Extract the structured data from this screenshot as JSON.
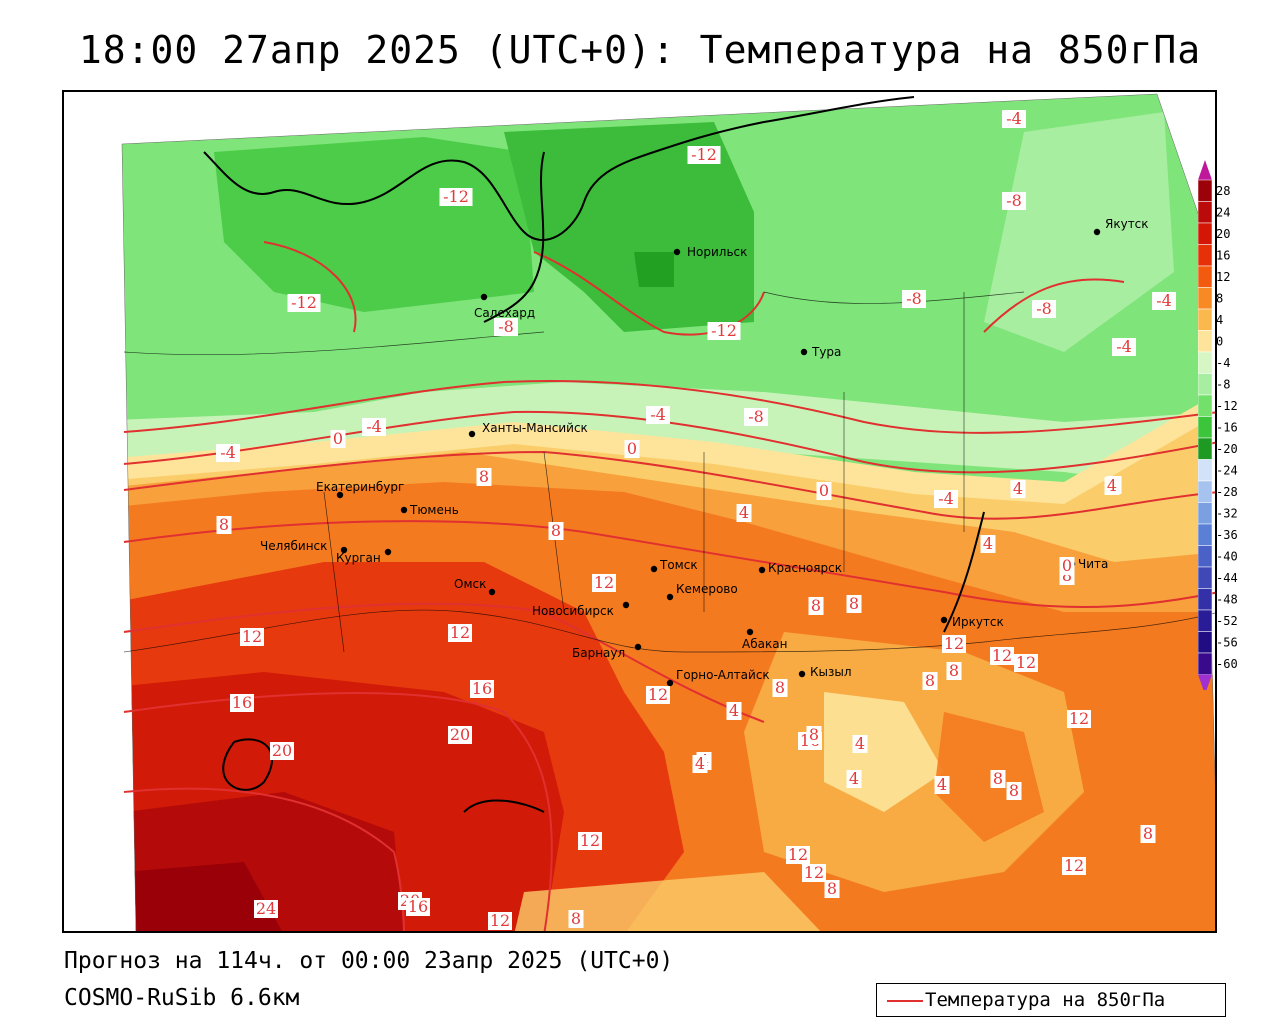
{
  "header": {
    "title": "18:00 27апр 2025 (UTC+0): Температура на 850гПа"
  },
  "footer": {
    "forecast": "Прогноз на 114ч. от 00:00 23апр 2025 (UTC+0)",
    "model": "COSMO-RuSib 6.6км"
  },
  "legend": {
    "label": "Температура на 850гПа",
    "line_color": "#e03030"
  },
  "colorbar": {
    "levels": [
      "28",
      "24",
      "20",
      "16",
      "12",
      "8",
      "4",
      "0",
      "-4",
      "-8",
      "-12",
      "-16",
      "-20",
      "-24",
      "-28",
      "-32",
      "-36",
      "-40",
      "-44",
      "-48",
      "-52",
      "-56",
      "-60"
    ],
    "colors": [
      "#9c0008",
      "#bb0a0a",
      "#d41606",
      "#e53008",
      "#f25a10",
      "#f88a24",
      "#fbb84c",
      "#fde49a",
      "#d6f7c4",
      "#a8eea0",
      "#72e06a",
      "#3cc43a",
      "#1e9a22",
      "#d2e2f8",
      "#a6c2ee",
      "#7aa0e2",
      "#5a80d6",
      "#4a62c8",
      "#4048b8",
      "#3430a8",
      "#2a1c96",
      "#220c84",
      "#3a0a8c"
    ],
    "top_arrow_color": "#c0189a",
    "bottom_arrow_color": "#a030d0"
  },
  "cities": [
    {
      "name": "Норильск"
    },
    {
      "name": "Якутск"
    },
    {
      "name": "Салехард"
    },
    {
      "name": "Тура"
    },
    {
      "name": "Ханты-Мансийск"
    },
    {
      "name": "Екатеринбург"
    },
    {
      "name": "Тюмень"
    },
    {
      "name": "Челябинск"
    },
    {
      "name": "Курган"
    },
    {
      "name": "Омск"
    },
    {
      "name": "Новосибирск"
    },
    {
      "name": "Томск"
    },
    {
      "name": "Кемерово"
    },
    {
      "name": "Красноярск"
    },
    {
      "name": "Абакан"
    },
    {
      "name": "Барнаул"
    },
    {
      "name": "Горно-Алтайск"
    },
    {
      "name": "Кызыл"
    },
    {
      "name": "Иркутск"
    },
    {
      "name": "Чита"
    }
  ],
  "isotherm_labels": [
    "-12",
    "-4",
    "-12",
    "-8",
    "-12",
    "-8",
    "-8",
    "-4",
    "-12",
    "-8",
    "-4",
    "-4",
    "0",
    "-4",
    "-4",
    "-8",
    "0",
    "-4",
    "0",
    "4",
    "8",
    "8",
    "8",
    "4",
    "12",
    "8",
    "12",
    "12",
    "16",
    "16",
    "20",
    "20",
    "24",
    "20",
    "16",
    "12",
    "8",
    "16",
    "12",
    "8",
    "12",
    "12",
    "12",
    "8",
    "4",
    "4",
    "8",
    "4",
    "4",
    "8",
    "12",
    "8",
    "4",
    "8",
    "4",
    "8",
    "12",
    "8",
    "12",
    "12",
    "8",
    "8",
    "12",
    "8",
    "4",
    "0",
    "4"
  ]
}
